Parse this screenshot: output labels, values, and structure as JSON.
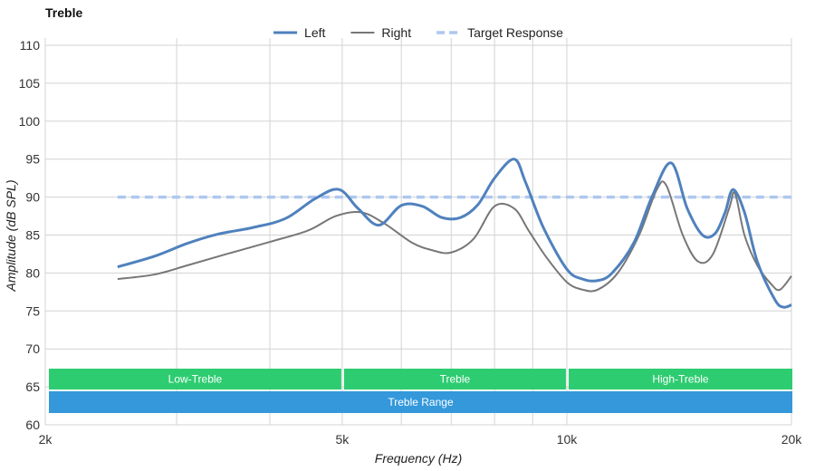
{
  "chart_data": {
    "type": "line",
    "title": "Treble",
    "xlabel": "Frequency (Hz)",
    "ylabel": "Amplitude (dB SPL)",
    "x_scale": "log",
    "xlim": [
      2000,
      20000
    ],
    "ylim": [
      60,
      110
    ],
    "xticks": [
      {
        "value": 2000,
        "label": "2k"
      },
      {
        "value": 5000,
        "label": "5k"
      },
      {
        "value": 10000,
        "label": "10k"
      },
      {
        "value": 20000,
        "label": "20k"
      }
    ],
    "x_minor_grid": [
      3000,
      4000,
      6000,
      7000,
      8000,
      9000
    ],
    "yticks": [
      60,
      65,
      70,
      75,
      80,
      85,
      90,
      95,
      100,
      105,
      110
    ],
    "grid": true,
    "legend_position": "top-center",
    "series": [
      {
        "name": "Left",
        "color": "#4f81bd",
        "style": "solid-thick",
        "x": [
          2500,
          2800,
          3100,
          3400,
          3800,
          4200,
          4600,
          4950,
          5250,
          5600,
          6000,
          6400,
          6800,
          7200,
          7600,
          8000,
          8500,
          8800,
          9300,
          10000,
          10500,
          11000,
          11500,
          12300,
          13000,
          13800,
          14500,
          15200,
          15800,
          16300,
          16700,
          17300,
          18000,
          19000,
          19500,
          20000
        ],
        "y": [
          80.8,
          82.2,
          83.9,
          85.1,
          86.0,
          87.2,
          89.8,
          91.0,
          88.5,
          86.3,
          88.9,
          88.8,
          87.3,
          87.3,
          89.0,
          92.5,
          95.0,
          92.0,
          86.0,
          80.5,
          79.2,
          79.0,
          80.0,
          84.0,
          90.0,
          94.5,
          88.5,
          85.0,
          85.2,
          88.0,
          91.0,
          88.0,
          81.5,
          76.5,
          75.5,
          75.8
        ]
      },
      {
        "name": "Right",
        "color": "#777777",
        "style": "solid-thin",
        "x": [
          2500,
          2800,
          3100,
          3500,
          4000,
          4500,
          4900,
          5300,
          5700,
          6200,
          6600,
          7000,
          7500,
          8000,
          8500,
          8900,
          9400,
          10000,
          10500,
          11000,
          11700,
          12500,
          13200,
          13600,
          14300,
          15000,
          15700,
          16500,
          16800,
          17300,
          18000,
          18800,
          19300,
          20000
        ],
        "y": [
          79.2,
          79.8,
          81.0,
          82.5,
          84.1,
          85.6,
          87.5,
          88.0,
          86.5,
          84.0,
          83.0,
          82.7,
          84.5,
          88.8,
          88.5,
          85.5,
          82.0,
          78.8,
          77.8,
          77.8,
          80.0,
          85.0,
          91.0,
          91.5,
          85.0,
          81.5,
          82.5,
          88.5,
          90.5,
          85.0,
          81.0,
          78.5,
          77.8,
          79.6
        ]
      },
      {
        "name": "Target Response",
        "color": "#aec7f0",
        "style": "dashed",
        "x": [
          2500,
          20000
        ],
        "y": [
          90,
          90
        ]
      }
    ],
    "bands": [
      {
        "label": "Low-Treble",
        "from": 2000,
        "to": 5000,
        "color": "#2ecc71",
        "row": 1
      },
      {
        "label": "Treble",
        "from": 5000,
        "to": 10000,
        "color": "#2ecc71",
        "row": 1
      },
      {
        "label": "High-Treble",
        "from": 10000,
        "to": 20000,
        "color": "#2ecc71",
        "row": 1
      },
      {
        "label": "Treble Range",
        "from": 2000,
        "to": 20000,
        "color": "#3498db",
        "row": 2
      }
    ]
  }
}
